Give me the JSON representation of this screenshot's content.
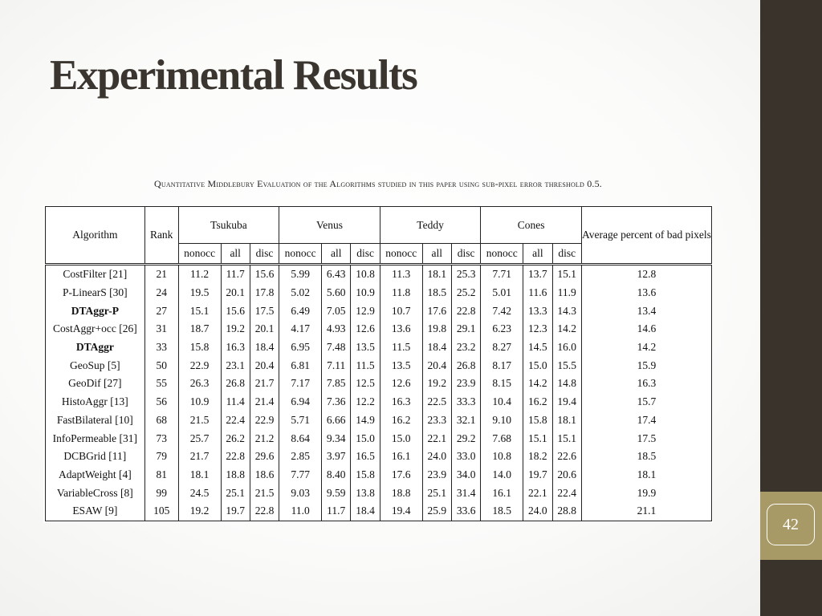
{
  "slide": {
    "title": "Experimental Results",
    "page_number": "42"
  },
  "caption": "Quantitative Middlebury Evaluation of the Algorithms studied in this paper using sub-pixel error threshold 0.5.",
  "table": {
    "header": {
      "algorithm": "Algorithm",
      "rank": "Rank",
      "groups": [
        "Tsukuba",
        "Venus",
        "Teddy",
        "Cones"
      ],
      "average": "Average percent of bad pixels",
      "subcolumns": [
        "nonocc",
        "all",
        "disc"
      ]
    },
    "rows": [
      {
        "algorithm": "CostFilter [21]",
        "bold": false,
        "rank": "21",
        "values": [
          "11.2",
          "11.7",
          "15.6",
          "5.99",
          "6.43",
          "10.8",
          "11.3",
          "18.1",
          "25.3",
          "7.71",
          "13.7",
          "15.1"
        ],
        "avg": "12.8"
      },
      {
        "algorithm": "P-LinearS [30]",
        "bold": false,
        "rank": "24",
        "values": [
          "19.5",
          "20.1",
          "17.8",
          "5.02",
          "5.60",
          "10.9",
          "11.8",
          "18.5",
          "25.2",
          "5.01",
          "11.6",
          "11.9"
        ],
        "avg": "13.6"
      },
      {
        "algorithm": "DTAggr-P",
        "bold": true,
        "rank": "27",
        "values": [
          "15.1",
          "15.6",
          "17.5",
          "6.49",
          "7.05",
          "12.9",
          "10.7",
          "17.6",
          "22.8",
          "7.42",
          "13.3",
          "14.3"
        ],
        "avg": "13.4"
      },
      {
        "algorithm": "CostAggr+occ [26]",
        "bold": false,
        "rank": "31",
        "values": [
          "18.7",
          "19.2",
          "20.1",
          "4.17",
          "4.93",
          "12.6",
          "13.6",
          "19.8",
          "29.1",
          "6.23",
          "12.3",
          "14.2"
        ],
        "avg": "14.6"
      },
      {
        "algorithm": "DTAggr",
        "bold": true,
        "rank": "33",
        "values": [
          "15.8",
          "16.3",
          "18.4",
          "6.95",
          "7.48",
          "13.5",
          "11.5",
          "18.4",
          "23.2",
          "8.27",
          "14.5",
          "16.0"
        ],
        "avg": "14.2"
      },
      {
        "algorithm": "GeoSup [5]",
        "bold": false,
        "rank": "50",
        "values": [
          "22.9",
          "23.1",
          "20.4",
          "6.81",
          "7.11",
          "11.5",
          "13.5",
          "20.4",
          "26.8",
          "8.17",
          "15.0",
          "15.5"
        ],
        "avg": "15.9"
      },
      {
        "algorithm": "GeoDif [27]",
        "bold": false,
        "rank": "55",
        "values": [
          "26.3",
          "26.8",
          "21.7",
          "7.17",
          "7.85",
          "12.5",
          "12.6",
          "19.2",
          "23.9",
          "8.15",
          "14.2",
          "14.8"
        ],
        "avg": "16.3"
      },
      {
        "algorithm": "HistoAggr [13]",
        "bold": false,
        "rank": "56",
        "values": [
          "10.9",
          "11.4",
          "21.4",
          "6.94",
          "7.36",
          "12.2",
          "16.3",
          "22.5",
          "33.3",
          "10.4",
          "16.2",
          "19.4"
        ],
        "avg": "15.7"
      },
      {
        "algorithm": "FastBilateral [10]",
        "bold": false,
        "rank": "68",
        "values": [
          "21.5",
          "22.4",
          "22.9",
          "5.71",
          "6.66",
          "14.9",
          "16.2",
          "23.3",
          "32.1",
          "9.10",
          "15.8",
          "18.1"
        ],
        "avg": "17.4"
      },
      {
        "algorithm": "InfoPermeable [31]",
        "bold": false,
        "rank": "73",
        "values": [
          "25.7",
          "26.2",
          "21.2",
          "8.64",
          "9.34",
          "15.0",
          "15.0",
          "22.1",
          "29.2",
          "7.68",
          "15.1",
          "15.1"
        ],
        "avg": "17.5"
      },
      {
        "algorithm": "DCBGrid [11]",
        "bold": false,
        "rank": "79",
        "values": [
          "21.7",
          "22.8",
          "29.6",
          "2.85",
          "3.97",
          "16.5",
          "16.1",
          "24.0",
          "33.0",
          "10.8",
          "18.2",
          "22.6"
        ],
        "avg": "18.5"
      },
      {
        "algorithm": "AdaptWeight [4]",
        "bold": false,
        "rank": "81",
        "values": [
          "18.1",
          "18.8",
          "18.6",
          "7.77",
          "8.40",
          "15.8",
          "17.6",
          "23.9",
          "34.0",
          "14.0",
          "19.7",
          "20.6"
        ],
        "avg": "18.1"
      },
      {
        "algorithm": "VariableCross [8]",
        "bold": false,
        "rank": "99",
        "values": [
          "24.5",
          "25.1",
          "21.5",
          "9.03",
          "9.59",
          "13.8",
          "18.8",
          "25.1",
          "31.4",
          "16.1",
          "22.1",
          "22.4"
        ],
        "avg": "19.9"
      },
      {
        "algorithm": "ESAW [9]",
        "bold": false,
        "rank": "105",
        "values": [
          "19.2",
          "19.7",
          "22.8",
          "11.0",
          "11.7",
          "18.4",
          "19.4",
          "25.9",
          "33.6",
          "18.5",
          "24.0",
          "28.8"
        ],
        "avg": "21.1"
      }
    ]
  },
  "colors": {
    "sidebar": "#39332b",
    "page_badge": "#a79a66",
    "title": "#3b3530"
  }
}
